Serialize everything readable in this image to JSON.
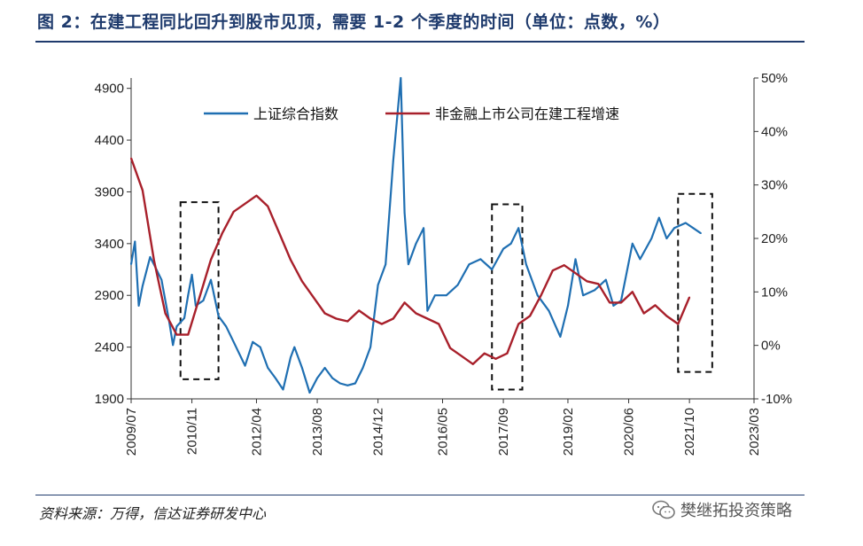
{
  "header": {
    "title": "图 2：在建工程同比回升到股市见顶，需要 1-2 个季度的时间（单位：点数，%）"
  },
  "footer": {
    "source": "资料来源：万得，信达证券研发中心",
    "watermark": "樊继拓投资策略",
    "watermark_icon": "wechat-icon"
  },
  "chart_data": {
    "type": "line",
    "legend": {
      "placement": "top-center",
      "entries": [
        "上证综合指数",
        "非金融上市公司在建工程增速"
      ]
    },
    "x_ticks": [
      "2009/07",
      "2010/11",
      "2012/04",
      "2013/08",
      "2014/12",
      "2016/05",
      "2017/09",
      "2019/02",
      "2020/06",
      "2021/10",
      "2023/03"
    ],
    "y_left": {
      "ticks": [
        "1900",
        "2400",
        "2900",
        "3400",
        "3900",
        "4400",
        "4900"
      ],
      "range": [
        1900,
        5000
      ]
    },
    "y_right": {
      "ticks": [
        "-10%",
        "0%",
        "10%",
        "20%",
        "30%",
        "40%",
        "50%"
      ],
      "range": [
        -10,
        50
      ]
    },
    "series": [
      {
        "name": "上证综合指数",
        "axis": "left",
        "color": "#1f6fb2",
        "points": [
          [
            "2009/07",
            3200
          ],
          [
            "2009/08",
            3420
          ],
          [
            "2009/09",
            2800
          ],
          [
            "2009/10",
            2990
          ],
          [
            "2009/12",
            3270
          ],
          [
            "2010/01",
            3200
          ],
          [
            "2010/03",
            3050
          ],
          [
            "2010/05",
            2650
          ],
          [
            "2010/06",
            2420
          ],
          [
            "2010/07",
            2600
          ],
          [
            "2010/09",
            2680
          ],
          [
            "2010/10",
            2900
          ],
          [
            "2010/11",
            3100
          ],
          [
            "2010/12",
            2800
          ],
          [
            "2011/02",
            2850
          ],
          [
            "2011/04",
            3050
          ],
          [
            "2011/06",
            2700
          ],
          [
            "2011/08",
            2600
          ],
          [
            "2011/10",
            2450
          ],
          [
            "2012/01",
            2220
          ],
          [
            "2012/03",
            2450
          ],
          [
            "2012/05",
            2400
          ],
          [
            "2012/07",
            2200
          ],
          [
            "2012/09",
            2100
          ],
          [
            "2012/11",
            1990
          ],
          [
            "2013/01",
            2300
          ],
          [
            "2013/02",
            2400
          ],
          [
            "2013/04",
            2200
          ],
          [
            "2013/06",
            1960
          ],
          [
            "2013/08",
            2100
          ],
          [
            "2013/10",
            2200
          ],
          [
            "2013/12",
            2100
          ],
          [
            "2014/02",
            2050
          ],
          [
            "2014/04",
            2030
          ],
          [
            "2014/06",
            2050
          ],
          [
            "2014/08",
            2200
          ],
          [
            "2014/10",
            2400
          ],
          [
            "2014/12",
            3000
          ],
          [
            "2015/02",
            3200
          ],
          [
            "2015/04",
            4200
          ],
          [
            "2015/06",
            5000
          ],
          [
            "2015/07",
            3700
          ],
          [
            "2015/08",
            3200
          ],
          [
            "2015/10",
            3400
          ],
          [
            "2015/12",
            3550
          ],
          [
            "2016/01",
            2750
          ],
          [
            "2016/03",
            2900
          ],
          [
            "2016/06",
            2900
          ],
          [
            "2016/09",
            3000
          ],
          [
            "2016/12",
            3200
          ],
          [
            "2017/03",
            3250
          ],
          [
            "2017/06",
            3150
          ],
          [
            "2017/09",
            3350
          ],
          [
            "2017/11",
            3400
          ],
          [
            "2018/01",
            3550
          ],
          [
            "2018/03",
            3200
          ],
          [
            "2018/06",
            2900
          ],
          [
            "2018/09",
            2750
          ],
          [
            "2018/12",
            2500
          ],
          [
            "2019/02",
            2800
          ],
          [
            "2019/04",
            3250
          ],
          [
            "2019/06",
            2900
          ],
          [
            "2019/09",
            2950
          ],
          [
            "2019/12",
            3050
          ],
          [
            "2020/02",
            2800
          ],
          [
            "2020/04",
            2850
          ],
          [
            "2020/07",
            3400
          ],
          [
            "2020/09",
            3250
          ],
          [
            "2020/12",
            3450
          ],
          [
            "2021/02",
            3650
          ],
          [
            "2021/04",
            3450
          ],
          [
            "2021/06",
            3550
          ],
          [
            "2021/09",
            3600
          ],
          [
            "2021/11",
            3550
          ],
          [
            "2022/01",
            3500
          ]
        ]
      },
      {
        "name": "非金融上市公司在建工程增速",
        "axis": "right",
        "color": "#a8202b",
        "points": [
          [
            "2009/07",
            35
          ],
          [
            "2009/10",
            29
          ],
          [
            "2010/01",
            16
          ],
          [
            "2010/04",
            6
          ],
          [
            "2010/07",
            2
          ],
          [
            "2010/10",
            2
          ],
          [
            "2011/01",
            9
          ],
          [
            "2011/04",
            16
          ],
          [
            "2011/07",
            21
          ],
          [
            "2011/10",
            25
          ],
          [
            "2012/01",
            26.5
          ],
          [
            "2012/04",
            28
          ],
          [
            "2012/07",
            26
          ],
          [
            "2012/10",
            21
          ],
          [
            "2013/01",
            16
          ],
          [
            "2013/04",
            12
          ],
          [
            "2013/07",
            9
          ],
          [
            "2013/10",
            6
          ],
          [
            "2014/01",
            5
          ],
          [
            "2014/04",
            4.5
          ],
          [
            "2014/07",
            6.5
          ],
          [
            "2014/10",
            5
          ],
          [
            "2015/01",
            4
          ],
          [
            "2015/04",
            5
          ],
          [
            "2015/07",
            8
          ],
          [
            "2015/10",
            6
          ],
          [
            "2016/01",
            5
          ],
          [
            "2016/04",
            4
          ],
          [
            "2016/07",
            -0.5
          ],
          [
            "2016/10",
            -2
          ],
          [
            "2017/01",
            -3.5
          ],
          [
            "2017/04",
            -1.5
          ],
          [
            "2017/07",
            -2.5
          ],
          [
            "2017/10",
            -1.5
          ],
          [
            "2018/01",
            4
          ],
          [
            "2018/04",
            5.5
          ],
          [
            "2018/07",
            9.5
          ],
          [
            "2018/10",
            14
          ],
          [
            "2019/01",
            15
          ],
          [
            "2019/04",
            13.5
          ],
          [
            "2019/07",
            12
          ],
          [
            "2019/10",
            11.5
          ],
          [
            "2020/01",
            8
          ],
          [
            "2020/04",
            8
          ],
          [
            "2020/07",
            10
          ],
          [
            "2020/10",
            6
          ],
          [
            "2021/01",
            7.5
          ],
          [
            "2021/04",
            5.5
          ],
          [
            "2021/07",
            4
          ],
          [
            "2021/10",
            9
          ]
        ]
      }
    ],
    "highlight_boxes": [
      {
        "from": "2010/08",
        "to": "2011/06",
        "y_left": [
          2090,
          3800
        ]
      },
      {
        "from": "2017/06",
        "to": "2018/02",
        "y_left": [
          1990,
          3780
        ]
      },
      {
        "from": "2021/07",
        "to": "2022/04",
        "y_left": [
          2160,
          3880
        ]
      }
    ]
  }
}
